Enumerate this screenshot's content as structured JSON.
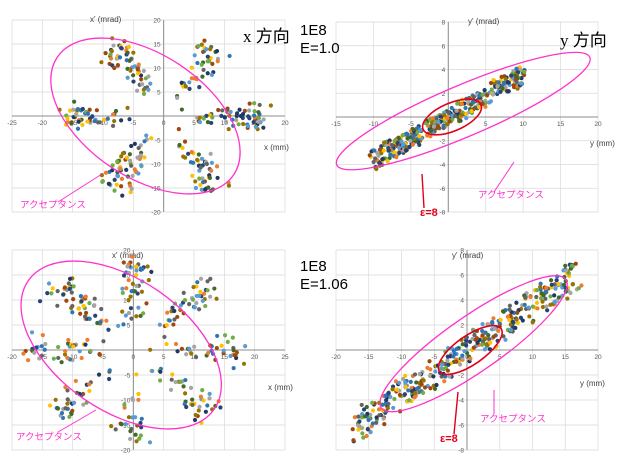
{
  "labels": {
    "x_direction": "x 方向",
    "y_direction": "y 方向",
    "intensity_top": "1E8",
    "energy_top": "E=1.0",
    "intensity_bottom": "1E8",
    "energy_bottom": "E=1.06"
  },
  "colors": {
    "grid": "#d9d9d9",
    "axis": "#8c8c8c",
    "acceptance": "#ff33cc",
    "emittance": "#e0001b",
    "points": [
      "#2e75b6",
      "#ed7d31",
      "#a5a5a5",
      "#ffc000",
      "#5b9bd5",
      "#70ad47",
      "#264478",
      "#9e480e",
      "#636363",
      "#997300",
      "#43682b",
      "#1f3864"
    ]
  },
  "chart_data": [
    {
      "type": "scatter",
      "title": "",
      "xlabel": "x (mm)",
      "ylabel": "x' (mrad)",
      "xlim": [
        -25,
        20
      ],
      "ylim": [
        -20,
        20
      ],
      "xticks": [
        "-25",
        "-20",
        "-15",
        "-10",
        "-5",
        "0",
        "5",
        "10",
        "15",
        "20"
      ],
      "yticks": [
        "-20",
        "-15",
        "-10",
        "-5",
        "0",
        "5",
        "10",
        "15",
        "20"
      ],
      "grid": true,
      "pattern": {
        "lobes": 6,
        "radius": 17,
        "spread": 1.2
      },
      "acceptance_ellipse": {
        "label": "アクセプタンス",
        "cx": -3,
        "cy": 0,
        "a": 19,
        "b": 11.5,
        "angle_deg": -40
      }
    },
    {
      "type": "scatter",
      "title": "",
      "xlabel": "y (mm)",
      "ylabel": "y' (mrad)",
      "xlim": [
        -15,
        20
      ],
      "ylim": [
        -8,
        8
      ],
      "xticks": [
        "-15",
        "-10",
        "-5",
        "0",
        "5",
        "10",
        "15",
        "20"
      ],
      "yticks": [
        "-8",
        "-6",
        "-4",
        "-2",
        "0",
        "2",
        "4",
        "6",
        "8"
      ],
      "grid": true,
      "pattern": {
        "slope": 0.36,
        "half_length": 10,
        "width": 0.8
      },
      "acceptance_ellipse": {
        "label": "アクセプタンス",
        "cx": 2,
        "cy": 0.5,
        "a": 17.5,
        "b": 2.2,
        "angle_deg": 15
      },
      "emittance_ellipse": {
        "label": "ε=8",
        "cx": 0.5,
        "cy": 0,
        "a": 4,
        "b": 1.2,
        "angle_deg": 15
      }
    },
    {
      "type": "scatter",
      "title": "",
      "xlabel": "x (mm)",
      "ylabel": "x' (mrad)",
      "xlim": [
        -20,
        25
      ],
      "ylim": [
        -20,
        20
      ],
      "xticks": [
        "-20",
        "-15",
        "-10",
        "-5",
        "0",
        "5",
        "10",
        "15",
        "20",
        "25"
      ],
      "yticks": [
        "-20",
        "-15",
        "-10",
        "-5",
        "0",
        "5",
        "10",
        "15",
        "20"
      ],
      "grid": true,
      "pattern": {
        "lobes": 8,
        "radius": 18,
        "spread": 1.4
      },
      "acceptance_ellipse": {
        "label": "アクセプタンス",
        "cx": -2,
        "cy": 1,
        "a": 20,
        "b": 12,
        "angle_deg": -40
      }
    },
    {
      "type": "scatter",
      "title": "",
      "xlabel": "y (mm)",
      "ylabel": "y' (mrad)",
      "xlim": [
        -20,
        20
      ],
      "ylim": [
        -8,
        8
      ],
      "xticks": [
        "-20",
        "-15",
        "-10",
        "-5",
        "0",
        "5",
        "10",
        "15",
        "20"
      ],
      "yticks": [
        "-8",
        "-6",
        "-4",
        "-2",
        "0",
        "2",
        "4",
        "6",
        "8"
      ],
      "grid": true,
      "pattern": {
        "slope": 0.36,
        "half_length": 17,
        "width": 1.3
      },
      "acceptance_ellipse": {
        "label": "アクセプタンス",
        "cx": 1,
        "cy": 0.5,
        "a": 15,
        "b": 2.3,
        "angle_deg": 20
      },
      "emittance_ellipse": {
        "label": "ε=8",
        "cx": 0.5,
        "cy": 0,
        "a": 5,
        "b": 1.2,
        "angle_deg": 20
      }
    }
  ]
}
